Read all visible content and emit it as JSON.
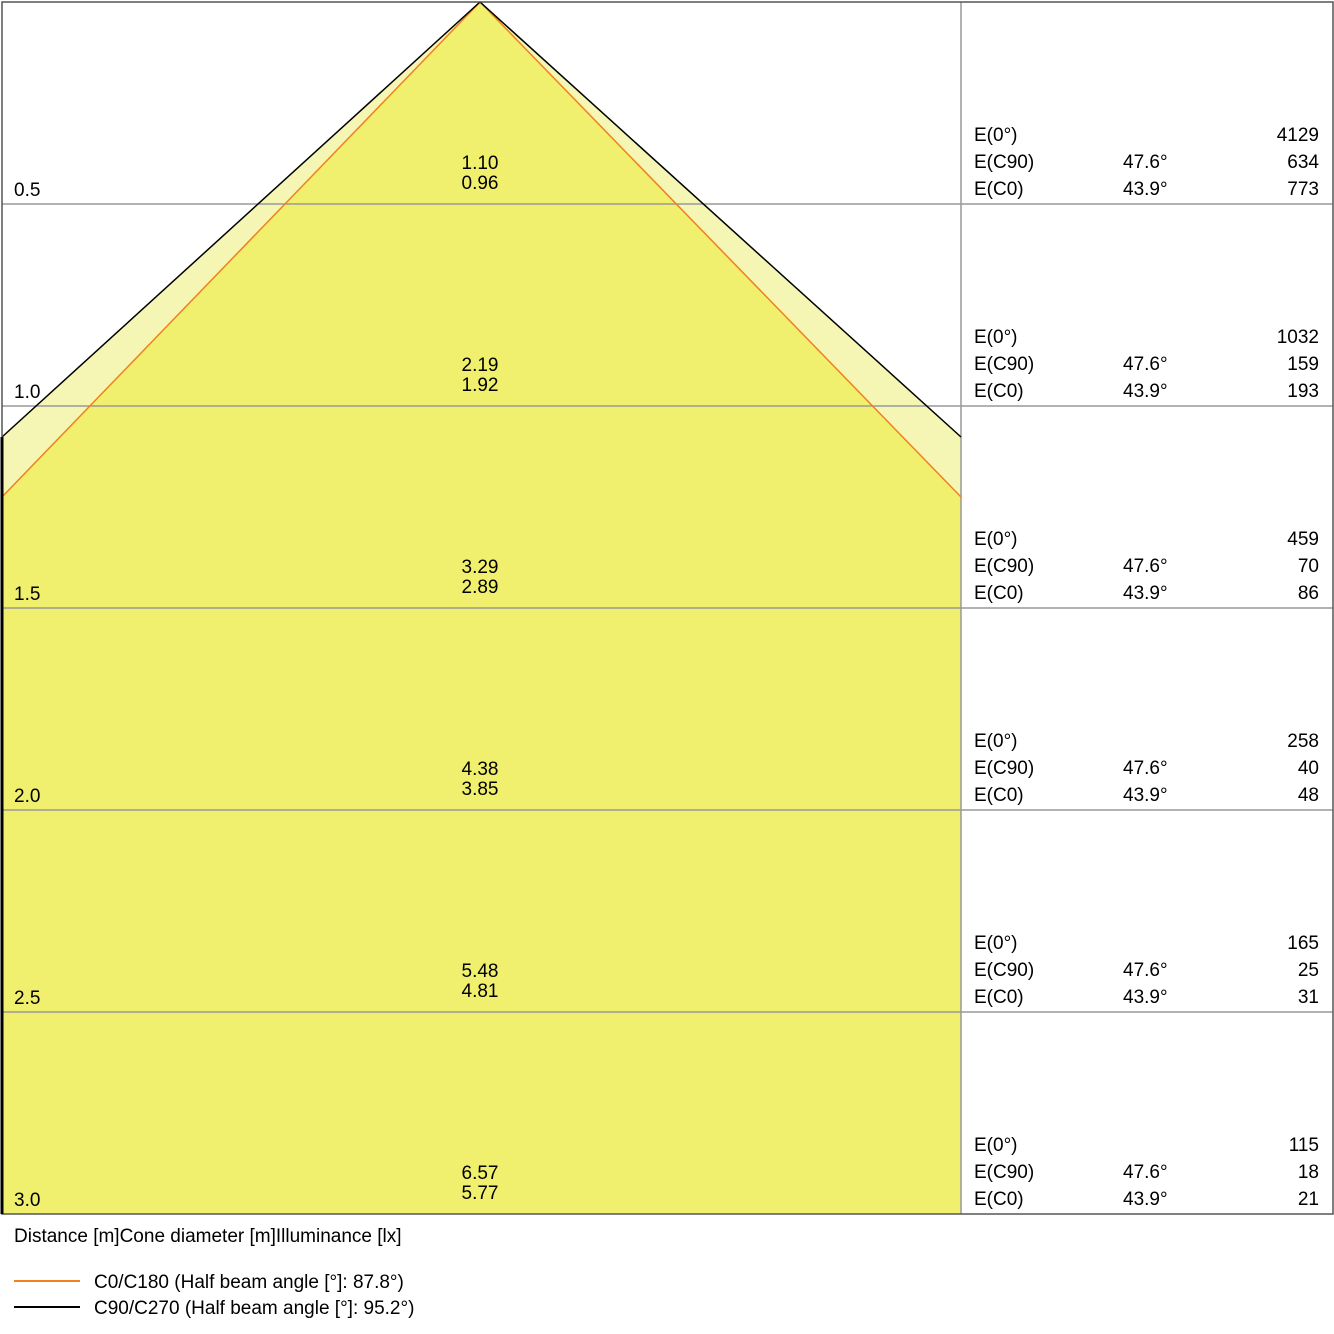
{
  "chart_data": {
    "type": "cone-diagram",
    "footer_label": "Distance [m]Cone diameter [m]Illuminance [lx]",
    "colors": {
      "c0_line": "#f08020",
      "c90_line": "#000000",
      "fill_inner": "#f0f06e",
      "fill_outer": "#f5f5b4",
      "grid": "#999999"
    },
    "legend": [
      {
        "name": "C0/C180 (Half beam angle [°]: 87.8°)",
        "color": "#f08020"
      },
      {
        "name": "C90/C270 (Half beam angle [°]: 95.2°)",
        "color": "#000000"
      }
    ],
    "row_labels": [
      "E(0°)",
      "E(C90)",
      "E(C0)"
    ],
    "rows": [
      {
        "distance": "0.5",
        "d_c90": "1.10",
        "d_c0": "0.96",
        "e0": "4129",
        "c90_angle": "47.6°",
        "e_c90": "634",
        "c0_angle": "43.9°",
        "e_c0": "773"
      },
      {
        "distance": "1.0",
        "d_c90": "2.19",
        "d_c0": "1.92",
        "e0": "1032",
        "c90_angle": "47.6°",
        "e_c90": "159",
        "c0_angle": "43.9°",
        "e_c0": "193"
      },
      {
        "distance": "1.5",
        "d_c90": "3.29",
        "d_c0": "2.89",
        "e0": "459",
        "c90_angle": "47.6°",
        "e_c90": "70",
        "c0_angle": "43.9°",
        "e_c0": "86"
      },
      {
        "distance": "2.0",
        "d_c90": "4.38",
        "d_c0": "3.85",
        "e0": "258",
        "c90_angle": "47.6°",
        "e_c90": "40",
        "c0_angle": "43.9°",
        "e_c0": "48"
      },
      {
        "distance": "2.5",
        "d_c90": "5.48",
        "d_c0": "4.81",
        "e0": "165",
        "c90_angle": "47.6°",
        "e_c90": "25",
        "c0_angle": "43.9°",
        "e_c0": "31"
      },
      {
        "distance": "3.0",
        "d_c90": "6.57",
        "d_c0": "5.77",
        "e0": "115",
        "c90_angle": "47.6°",
        "e_c90": "18",
        "c0_angle": "43.9°",
        "e_c0": "21"
      }
    ]
  }
}
